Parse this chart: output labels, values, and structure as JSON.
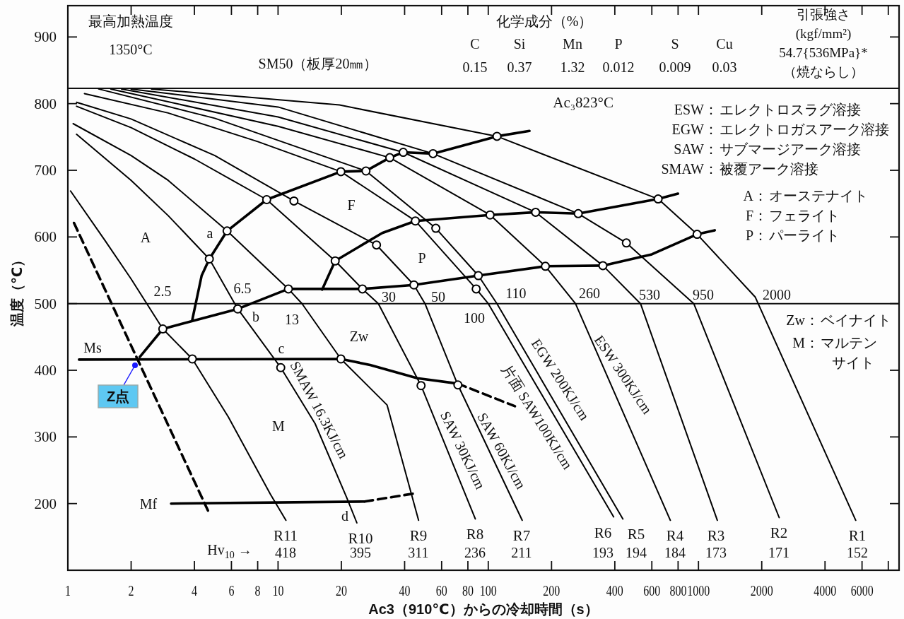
{
  "chart_data": {
    "type": "line",
    "xlabel": "Ac3（910℃）からの冷却時間（s）",
    "ylabel": "温度（℃）",
    "log": "x",
    "xlim": [
      1,
      9000
    ],
    "ylim": [
      100,
      947
    ],
    "xticks": [
      1,
      2,
      4,
      6,
      8,
      10,
      20,
      40,
      60,
      80,
      100,
      200,
      400,
      600,
      800,
      1000,
      2000,
      4000,
      6000,
      {
        "value": 8000,
        "label": null
      }
    ],
    "yticks": [
      200,
      300,
      400,
      500,
      600,
      700,
      800,
      900
    ],
    "grid": false,
    "legend": false,
    "ref_lines": [
      {
        "axis": "y",
        "value": 823,
        "label": "Ac₃823°C"
      },
      {
        "axis": "y",
        "value": 500
      }
    ],
    "series": [
      {
        "name": "R1",
        "color": "#000000",
        "x": [
          2.5,
          19.6,
          110,
          643,
          985,
          1860,
          5600
        ],
        "values": [
          822,
          798,
          751,
          657,
          604,
          510,
          175
        ]
      },
      {
        "name": "R2",
        "color": "#000000",
        "x": [
          2,
          10,
          54.6,
          268,
          454,
          950,
          2420
        ],
        "values": [
          822,
          795,
          725,
          635,
          591,
          500,
          179
        ]
      },
      {
        "name": "R3",
        "color": "#000000",
        "x": [
          1.8,
          10,
          39.4,
          168,
          351,
          530,
          1230
        ],
        "values": [
          822,
          780,
          727,
          637,
          557,
          500,
          175
        ]
      },
      {
        "name": "R4",
        "color": "#000000",
        "x": [
          1.6,
          10,
          34,
          102,
          187,
          260,
          735
        ],
        "values": [
          822,
          766,
          719,
          633,
          556,
          500,
          175
        ]
      },
      {
        "name": "R5",
        "color": "#000000",
        "x": [
          1.4,
          5,
          10,
          26.2,
          56.3,
          89.7,
          110,
          437
        ],
        "values": [
          822,
          778,
          745,
          699,
          613,
          542,
          500,
          177
        ]
      },
      {
        "name": "R6",
        "color": "#000000",
        "x": [
          1.2,
          3,
          8,
          19.9,
          45,
          87.6,
          100,
          395
        ],
        "values": [
          815,
          786,
          743,
          698,
          624,
          522,
          500,
          180
        ]
      },
      {
        "name": "R7",
        "color": "#000000",
        "x": [
          1.1,
          2,
          5,
          11.9,
          29.4,
          44.3,
          50,
          71.7,
          145
        ],
        "values": [
          802,
          777,
          722,
          654,
          588,
          528,
          500,
          378,
          175
        ]
      },
      {
        "name": "R8",
        "color": "#000000",
        "x": [
          1.1,
          2,
          4,
          8.83,
          18.7,
          25.2,
          30,
          47.9,
          86.8
        ],
        "values": [
          796,
          764,
          717,
          656,
          564,
          522,
          500,
          377,
          177
        ]
      },
      {
        "name": "R9",
        "color": "#000000",
        "x": [
          1.06,
          2,
          3,
          5.72,
          11.2,
          13,
          19.9,
          33,
          46.6
        ],
        "values": [
          770,
          722,
          685,
          609,
          522,
          500,
          417,
          348,
          175
        ]
      },
      {
        "name": "R10",
        "color": "#000000",
        "x": [
          1.1,
          2,
          3,
          4.71,
          6.43,
          10.3,
          15,
          21.2,
          23.7
        ],
        "values": [
          754,
          685,
          632,
          567,
          492,
          404,
          320,
          209,
          171
        ]
      },
      {
        "name": "R11",
        "color": "#000000",
        "x": [
          1.03,
          1.5,
          2,
          2.83,
          3.91,
          5.8,
          9.2,
          10.9
        ],
        "values": [
          669,
          595,
          537,
          462,
          417,
          330,
          214,
          175
        ]
      },
      {
        "color": "#000000",
        "x": [
          3.91,
          4.33,
          4.71,
          5.72,
          8.83,
          19.9,
          26.2,
          34,
          39.4,
          54.6,
          110,
          157
        ],
        "values": [
          476,
          542,
          567,
          609,
          656,
          698,
          699,
          719,
          727,
          725,
          751,
          759
        ]
      },
      {
        "color": "#000000",
        "x": [
          16.2,
          18.7,
          31.3,
          45,
          102,
          168,
          268,
          643,
          799
        ],
        "values": [
          521,
          564,
          606,
          624,
          633,
          637,
          635,
          657,
          665
        ]
      },
      {
        "color": "#000000",
        "x": [
          2.2,
          2.83,
          6.43,
          11.2,
          25.2,
          44.3,
          89.7,
          187,
          351,
          600,
          985,
          1195
        ],
        "values": [
          420,
          462,
          492,
          522,
          522,
          528,
          542,
          556,
          557,
          574,
          604,
          610
        ]
      },
      {
        "color": "#000000",
        "x": [
          1.13,
          19.9,
          27.4,
          46,
          71.7
        ],
        "values": [
          416,
          417,
          408,
          388,
          380
        ]
      },
      {
        "color": "#000000",
        "line_style": "dashed",
        "x": [
          71.7,
          134
        ],
        "values": [
          380,
          346
        ]
      },
      {
        "color": "#000000",
        "x": [
          3.1,
          25.8
        ],
        "values": [
          200,
          203
        ]
      },
      {
        "color": "#000000",
        "line_style": "dashed",
        "x": [
          25.8,
          46
        ],
        "values": [
          203,
          216
        ]
      },
      {
        "color": "#000000",
        "line_style": "dashed",
        "x": [
          1.07,
          4.68
        ],
        "values": [
          621,
          187
        ]
      },
      {
        "type": "scatter",
        "marker": "circle",
        "color": "#000000",
        "x": [
          2.83,
          3.91,
          4.71,
          5.72,
          6.43,
          8.83,
          11.9,
          11.2,
          10.3,
          18.7,
          19.9,
          19.9,
          25.2,
          26.2,
          29.4,
          34,
          39.4,
          44.3,
          45,
          47.9,
          54.6,
          56.3,
          71.7,
          87.6,
          89.7,
          102,
          110,
          168,
          187,
          268,
          351,
          454,
          643,
          985
        ],
        "values": [
          462,
          417,
          567,
          609,
          492,
          656,
          654,
          522,
          404,
          564,
          698,
          417,
          522,
          699,
          588,
          719,
          727,
          528,
          624,
          377,
          725,
          613,
          378,
          522,
          542,
          633,
          751,
          637,
          556,
          635,
          557,
          591,
          657,
          604
        ]
      }
    ],
    "annotations": [
      "最高加熱温度\n1350°C",
      "SM50（板厚20㎜）",
      "化学成分（%）",
      "C\n0.15",
      "Si\n0.37",
      "Mn\n1.32",
      "P\n0.012",
      "S\n0.009",
      "Cu\n0.03",
      "引張強さ\n(kgf/mm²)\n54.7{536MPa}*\n（焼ならし）",
      "ESW：エレクトロスラグ溶接",
      "EGW：エレクトロガスアーク溶接",
      "SAW：サブマージアーク溶接",
      "SMAW：被覆アーク溶接",
      "A：オーステナイト",
      "F：フェライト",
      "P：パーライト",
      "Zw：ベイナイト",
      "M：マルテンサイト",
      "Hv$_{10}$ →",
      "A",
      "F",
      "P",
      "Zw",
      "M",
      "Ms",
      "Mf",
      "a",
      "b",
      "c",
      "d",
      "2.5",
      "6.5",
      "13",
      "30",
      "50",
      "100",
      "110",
      "260",
      "530",
      "950",
      "2000",
      "SMAW 16.3KJ/cm",
      "SAW 30KJ/cm",
      "SAW 60KJ/cm",
      "片面 SAW100KJ/cm",
      "EGW 200KJ/cm",
      "ESW 300KJ/cm",
      "418",
      "395",
      "311",
      "236",
      "211",
      "193",
      "194",
      "184",
      "173",
      "171",
      "152",
      "Z点"
    ]
  }
}
